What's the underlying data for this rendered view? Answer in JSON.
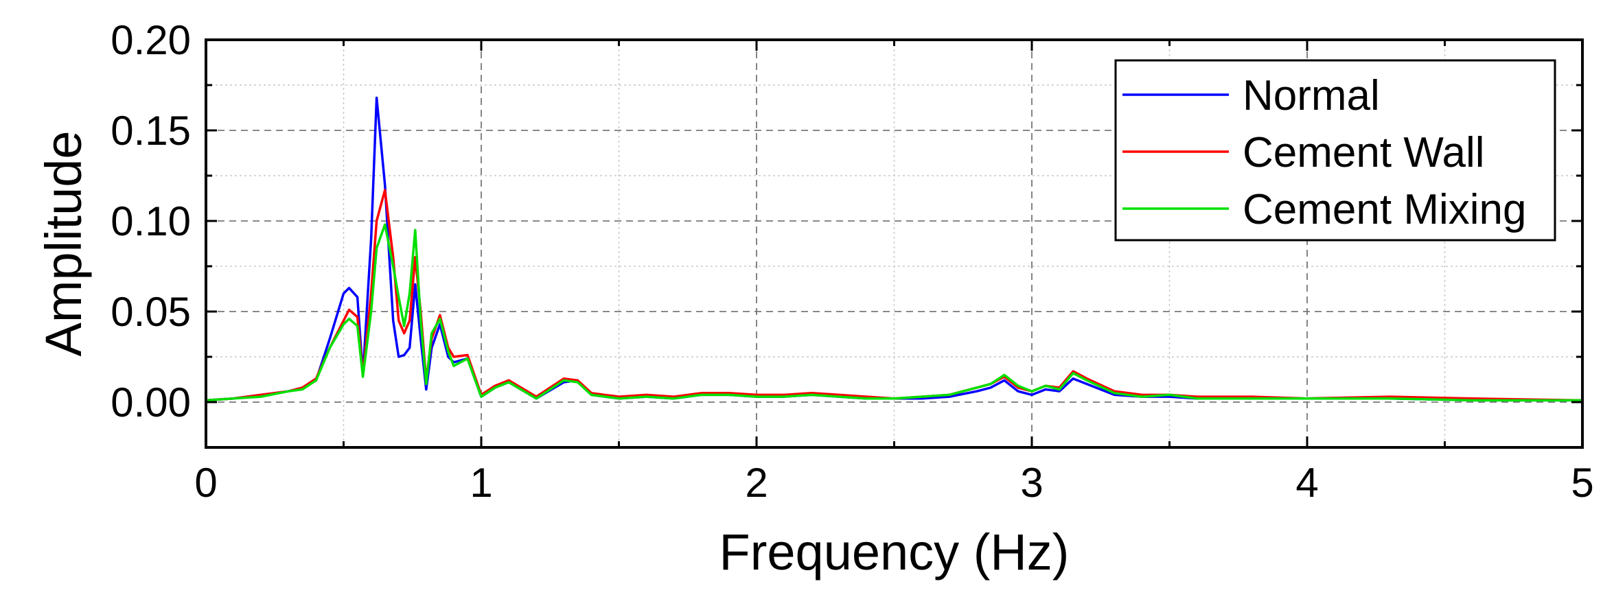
{
  "chart_data": {
    "type": "line",
    "xlabel": "Frequency (Hz)",
    "ylabel": "Amplitude",
    "xlim": [
      0,
      5
    ],
    "ylim": [
      -0.025,
      0.2
    ],
    "xticks": [
      "0",
      "1",
      "2",
      "3",
      "4",
      "5"
    ],
    "xtick_values": [
      0,
      1,
      2,
      3,
      4,
      5
    ],
    "yticks": [
      "0.00",
      "0.05",
      "0.10",
      "0.15",
      "0.20"
    ],
    "ytick_values": [
      0,
      0.05,
      0.1,
      0.15,
      0.2
    ],
    "grid": true,
    "legend_position": "top-right",
    "x": [
      0,
      0.1,
      0.2,
      0.3,
      0.35,
      0.4,
      0.45,
      0.5,
      0.52,
      0.55,
      0.57,
      0.6,
      0.62,
      0.65,
      0.68,
      0.7,
      0.72,
      0.74,
      0.76,
      0.78,
      0.8,
      0.82,
      0.85,
      0.88,
      0.9,
      0.95,
      1.0,
      1.05,
      1.1,
      1.2,
      1.3,
      1.35,
      1.4,
      1.5,
      1.6,
      1.7,
      1.8,
      1.9,
      2.0,
      2.1,
      2.2,
      2.3,
      2.4,
      2.5,
      2.6,
      2.7,
      2.8,
      2.85,
      2.9,
      2.95,
      3.0,
      3.05,
      3.1,
      3.15,
      3.2,
      3.3,
      3.4,
      3.5,
      3.6,
      3.7,
      3.8,
      4.0,
      4.3,
      4.6,
      5.0
    ],
    "series": [
      {
        "name": "Normal",
        "color": "#0000ff",
        "values": [
          0.001,
          0.002,
          0.004,
          0.006,
          0.008,
          0.012,
          0.035,
          0.06,
          0.063,
          0.058,
          0.015,
          0.09,
          0.168,
          0.12,
          0.045,
          0.025,
          0.026,
          0.03,
          0.065,
          0.035,
          0.007,
          0.03,
          0.043,
          0.025,
          0.022,
          0.024,
          0.003,
          0.008,
          0.011,
          0.002,
          0.011,
          0.012,
          0.004,
          0.002,
          0.003,
          0.002,
          0.004,
          0.004,
          0.003,
          0.003,
          0.004,
          0.003,
          0.002,
          0.002,
          0.002,
          0.003,
          0.006,
          0.008,
          0.012,
          0.006,
          0.004,
          0.007,
          0.006,
          0.013,
          0.01,
          0.004,
          0.003,
          0.003,
          0.002,
          0.002,
          0.002,
          0.002,
          0.002,
          0.001,
          0.001
        ]
      },
      {
        "name": "Cement Wall",
        "color": "#ff0000",
        "values": [
          0.001,
          0.002,
          0.004,
          0.006,
          0.008,
          0.013,
          0.03,
          0.045,
          0.051,
          0.047,
          0.015,
          0.06,
          0.1,
          0.117,
          0.08,
          0.045,
          0.038,
          0.045,
          0.08,
          0.05,
          0.012,
          0.035,
          0.048,
          0.03,
          0.025,
          0.026,
          0.004,
          0.009,
          0.012,
          0.003,
          0.013,
          0.012,
          0.005,
          0.003,
          0.004,
          0.003,
          0.005,
          0.005,
          0.004,
          0.004,
          0.005,
          0.004,
          0.003,
          0.002,
          0.003,
          0.004,
          0.008,
          0.01,
          0.014,
          0.008,
          0.006,
          0.009,
          0.008,
          0.017,
          0.013,
          0.006,
          0.004,
          0.004,
          0.003,
          0.003,
          0.003,
          0.002,
          0.003,
          0.002,
          0.001
        ]
      },
      {
        "name": "Cement Mixing",
        "color": "#00e000",
        "values": [
          0.001,
          0.002,
          0.003,
          0.006,
          0.007,
          0.012,
          0.03,
          0.043,
          0.046,
          0.042,
          0.014,
          0.05,
          0.085,
          0.098,
          0.075,
          0.058,
          0.042,
          0.06,
          0.095,
          0.045,
          0.01,
          0.038,
          0.046,
          0.028,
          0.02,
          0.024,
          0.003,
          0.008,
          0.011,
          0.002,
          0.012,
          0.011,
          0.004,
          0.002,
          0.003,
          0.002,
          0.004,
          0.004,
          0.003,
          0.003,
          0.004,
          0.003,
          0.002,
          0.002,
          0.003,
          0.004,
          0.008,
          0.01,
          0.015,
          0.009,
          0.006,
          0.009,
          0.007,
          0.016,
          0.012,
          0.005,
          0.003,
          0.004,
          0.002,
          0.002,
          0.002,
          0.002,
          0.002,
          0.001,
          0.001
        ]
      }
    ]
  }
}
